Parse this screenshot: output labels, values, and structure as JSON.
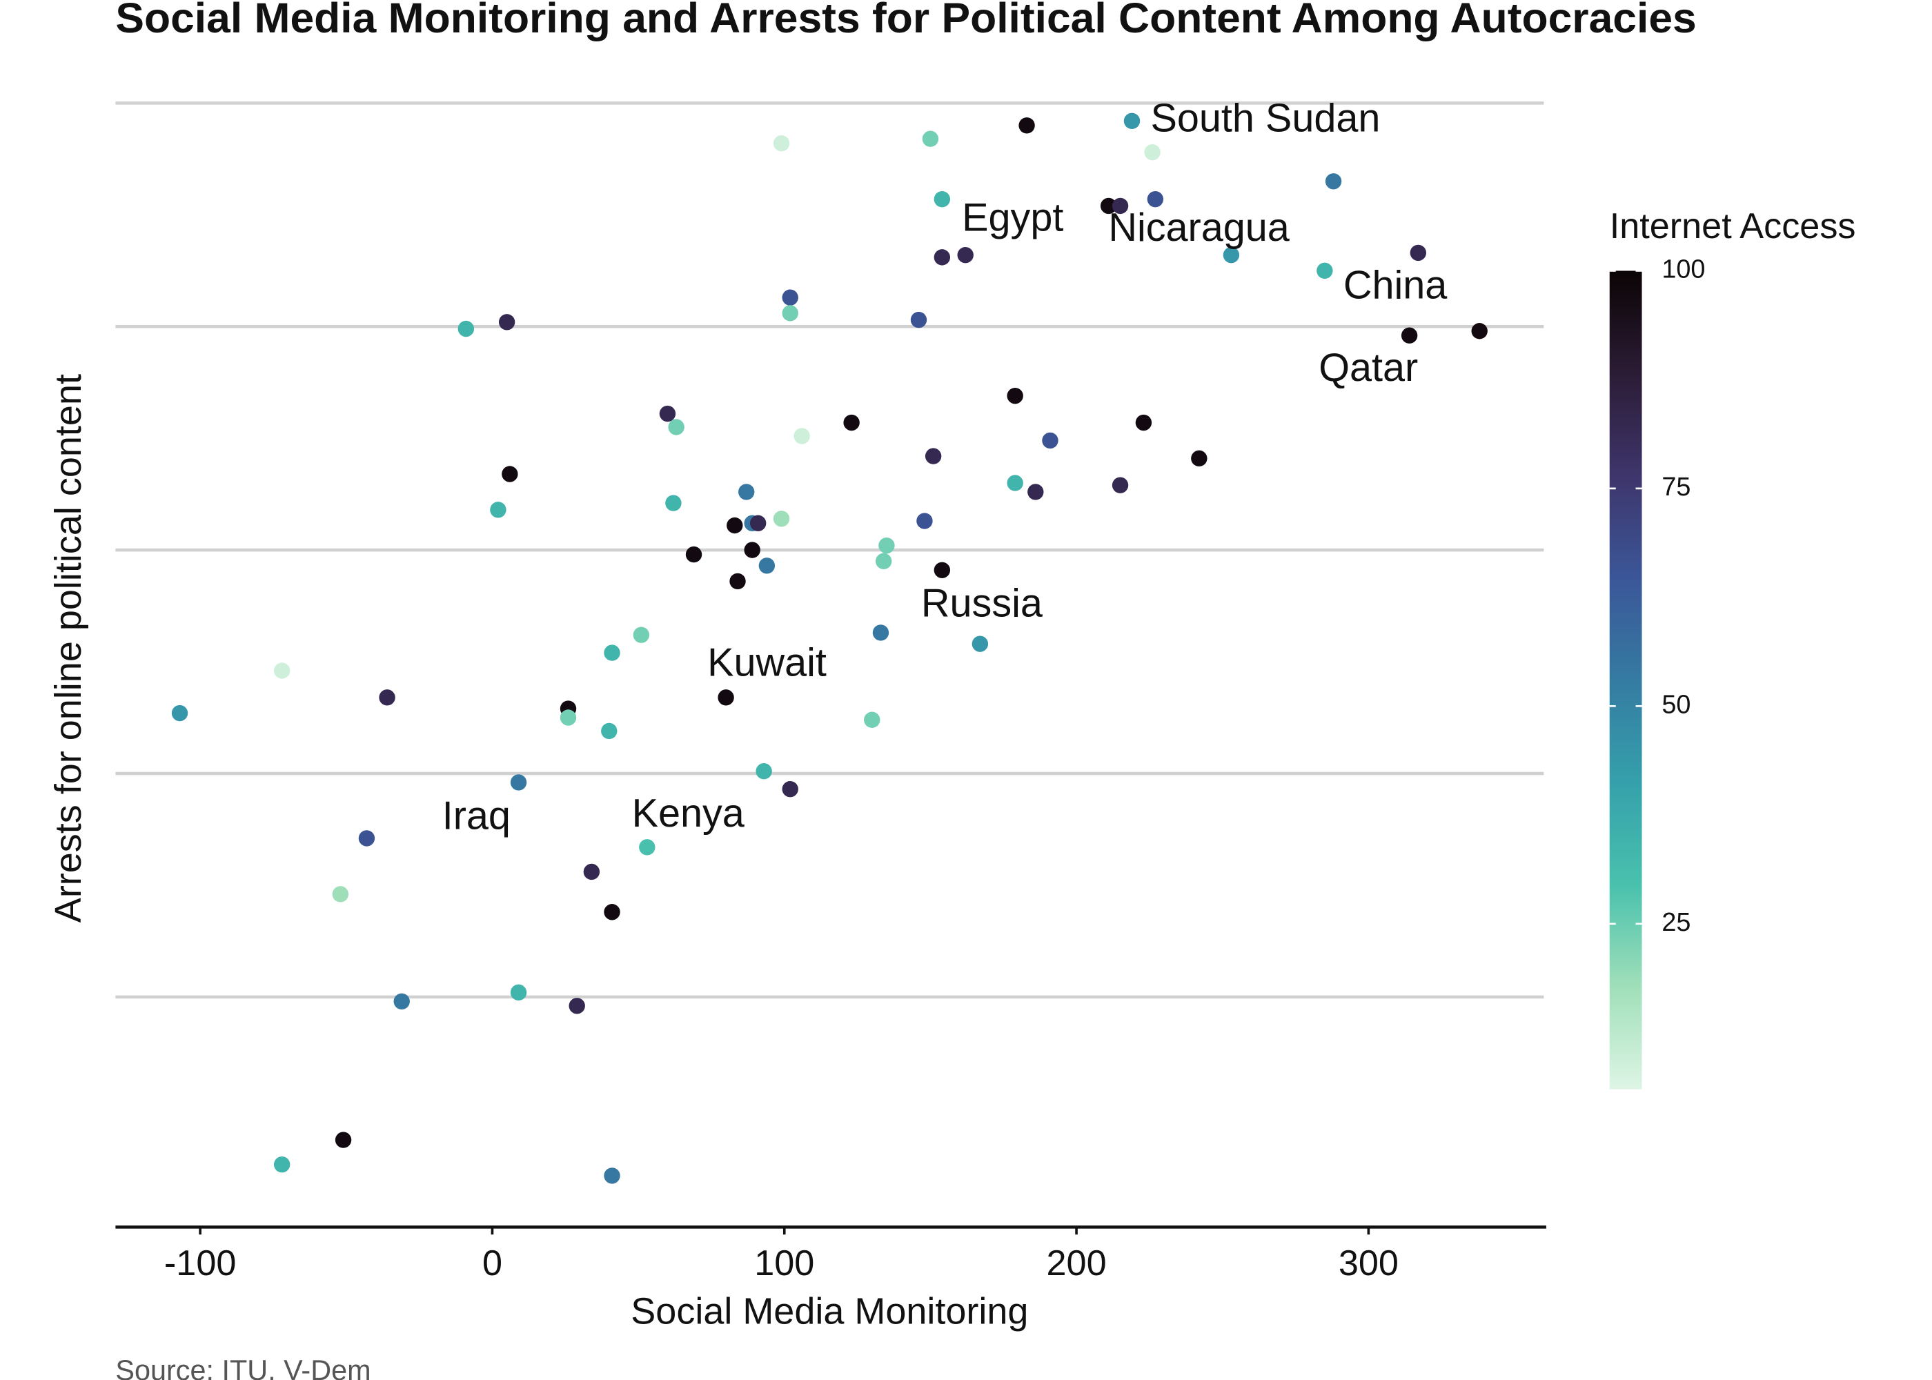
{
  "chart_data": {
    "type": "scatter",
    "title": "Social Media Monitoring and Arrests for Political Content Among Autocracies",
    "x_label": "Social Media Monitoring",
    "y_label": "Arrests for online political content",
    "source": "Source: ITU, V-Dem",
    "xlim": [
      -129,
      360
    ],
    "xticks": [
      -100,
      0,
      100,
      200,
      300
    ],
    "ylim": [
      -2.03,
      3.1
    ],
    "yticks": [
      -1,
      0,
      1,
      2,
      3
    ],
    "grid": true,
    "x": [
      99,
      150,
      183,
      219,
      226,
      154,
      211,
      215,
      227,
      288,
      154,
      162,
      253,
      285,
      317,
      102,
      102,
      146,
      -9,
      5,
      314,
      338,
      60,
      63,
      106,
      123,
      179,
      223,
      191,
      151,
      242,
      6,
      2,
      62,
      87,
      99,
      179,
      186,
      215,
      83,
      89,
      91,
      148,
      69,
      89,
      94,
      135,
      134,
      154,
      84,
      -72,
      -36,
      -107,
      41,
      51,
      133,
      167,
      80,
      26,
      26,
      40,
      130,
      9,
      93,
      102,
      -43,
      53,
      -52,
      34,
      41,
      -31,
      9,
      29,
      -51,
      -72,
      41
    ],
    "values": [
      2.82,
      2.84,
      2.9,
      2.92,
      2.78,
      2.57,
      2.54,
      2.54,
      2.57,
      2.65,
      2.31,
      2.32,
      2.32,
      2.25,
      2.33,
      2.13,
      2.06,
      2.03,
      1.99,
      2.02,
      1.96,
      1.98,
      1.61,
      1.55,
      1.51,
      1.57,
      1.69,
      1.57,
      1.49,
      1.42,
      1.41,
      1.34,
      1.18,
      1.21,
      1.26,
      1.14,
      1.3,
      1.26,
      1.29,
      1.11,
      1.12,
      1.12,
      1.13,
      0.98,
      1.0,
      0.93,
      1.02,
      0.95,
      0.91,
      0.86,
      0.46,
      0.34,
      0.27,
      0.54,
      0.62,
      0.63,
      0.58,
      0.34,
      0.29,
      0.25,
      0.19,
      0.24,
      -0.04,
      0.01,
      -0.07,
      -0.29,
      -0.33,
      -0.54,
      -0.44,
      -0.62,
      -1.02,
      -0.98,
      -1.04,
      -1.64,
      -1.75,
      -1.8
    ],
    "internet_access": [
      9,
      24,
      97,
      44,
      9,
      34,
      97,
      82,
      66,
      54,
      82,
      82,
      44,
      34,
      82,
      66,
      24,
      66,
      34,
      82,
      97,
      97,
      82,
      24,
      9,
      97,
      97,
      97,
      66,
      82,
      97,
      97,
      34,
      34,
      54,
      18,
      34,
      82,
      82,
      97,
      54,
      82,
      66,
      97,
      97,
      54,
      24,
      24,
      97,
      97,
      9,
      82,
      44,
      34,
      24,
      54,
      44,
      97,
      97,
      24,
      34,
      24,
      54,
      34,
      82,
      66,
      30,
      18,
      82,
      97,
      54,
      34,
      82,
      97,
      34,
      54
    ],
    "labels": [
      null,
      null,
      null,
      "South Sudan",
      null,
      "Egypt",
      null,
      null,
      null,
      null,
      null,
      null,
      "Nicaragua",
      "China",
      null,
      null,
      null,
      null,
      null,
      null,
      "Qatar",
      null,
      null,
      null,
      null,
      null,
      null,
      null,
      null,
      null,
      null,
      null,
      null,
      null,
      null,
      null,
      null,
      null,
      null,
      null,
      null,
      null,
      null,
      null,
      null,
      null,
      null,
      null,
      "Russia",
      null,
      null,
      null,
      null,
      null,
      null,
      null,
      null,
      "Kuwait",
      null,
      null,
      null,
      null,
      "Iraq",
      null,
      null,
      null,
      "Kenya",
      null,
      null,
      null,
      null,
      null,
      null,
      null,
      null,
      null
    ],
    "colorbar": {
      "title": "Internet Access",
      "lim": [
        6,
        100
      ],
      "ticks": [
        25,
        50,
        75,
        100
      ],
      "stops": [
        {
          "value": 6,
          "color": "#def5e5"
        },
        {
          "value": 17.75,
          "color": "#a0dfb9"
        },
        {
          "value": 29.5,
          "color": "#49c1ad"
        },
        {
          "value": 41.25,
          "color": "#35a0ab"
        },
        {
          "value": 53,
          "color": "#357ba2"
        },
        {
          "value": 64.75,
          "color": "#3b5698"
        },
        {
          "value": 76.5,
          "color": "#3e356b"
        },
        {
          "value": 88.25,
          "color": "#2b1c35"
        },
        {
          "value": 100,
          "color": "#0b0405"
        }
      ]
    }
  }
}
